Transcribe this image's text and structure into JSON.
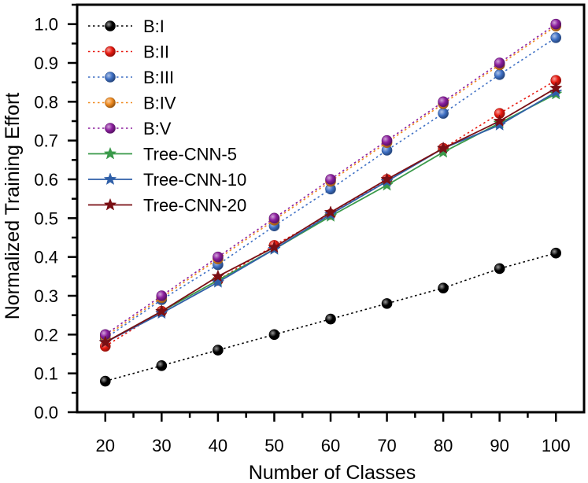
{
  "chart_data": {
    "type": "line",
    "title": "",
    "xlabel": "Number of Classes",
    "ylabel": "Normalized Training Effort",
    "x": [
      20,
      30,
      40,
      50,
      60,
      70,
      80,
      90,
      100
    ],
    "xticks": [
      "20",
      "30",
      "40",
      "50",
      "60",
      "70",
      "80",
      "90",
      "100"
    ],
    "yticks": [
      "0.0",
      "0.1",
      "0.2",
      "0.3",
      "0.4",
      "0.5",
      "0.6",
      "0.7",
      "0.8",
      "0.9",
      "1.0"
    ],
    "xlim": [
      15,
      105
    ],
    "ylim": [
      0.0,
      1.05
    ],
    "grid": false,
    "legend_position": "top-left",
    "series": [
      {
        "name": "B:I",
        "color": "#000000",
        "style": "dotted",
        "marker": "circle",
        "values": [
          0.08,
          0.12,
          0.16,
          0.2,
          0.24,
          0.28,
          0.32,
          0.37,
          0.41
        ]
      },
      {
        "name": "B:II",
        "color": "#e8190f",
        "style": "dotted",
        "marker": "circle",
        "values": [
          0.17,
          0.26,
          0.34,
          0.43,
          0.51,
          0.6,
          0.68,
          0.77,
          0.855
        ]
      },
      {
        "name": "B:III",
        "color": "#3d6fc4",
        "style": "dotted",
        "marker": "circle",
        "values": [
          0.19,
          0.29,
          0.38,
          0.48,
          0.575,
          0.675,
          0.77,
          0.87,
          0.965
        ]
      },
      {
        "name": "B:IV",
        "color": "#f08a1e",
        "style": "dotted",
        "marker": "circle",
        "values": [
          0.195,
          0.295,
          0.395,
          0.495,
          0.595,
          0.695,
          0.795,
          0.895,
          0.995
        ]
      },
      {
        "name": "B:V",
        "color": "#8b1e9e",
        "style": "dotted",
        "marker": "circle",
        "values": [
          0.2,
          0.3,
          0.4,
          0.5,
          0.6,
          0.7,
          0.8,
          0.9,
          1.0
        ]
      },
      {
        "name": "Tree-CNN-5",
        "color": "#3a9a4a",
        "style": "solid",
        "marker": "star",
        "values": [
          0.18,
          0.26,
          0.34,
          0.42,
          0.505,
          0.585,
          0.67,
          0.745,
          0.82
        ]
      },
      {
        "name": "Tree-CNN-10",
        "color": "#2f5fa8",
        "style": "solid",
        "marker": "star",
        "values": [
          0.18,
          0.255,
          0.335,
          0.42,
          0.51,
          0.595,
          0.68,
          0.74,
          0.825
        ]
      },
      {
        "name": "Tree-CNN-20",
        "color": "#7a0f14",
        "style": "solid",
        "marker": "star",
        "values": [
          0.18,
          0.26,
          0.35,
          0.425,
          0.515,
          0.6,
          0.68,
          0.75,
          0.835
        ]
      }
    ]
  }
}
